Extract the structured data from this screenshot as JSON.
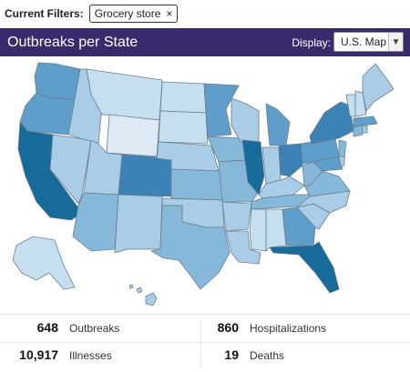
{
  "filters": {
    "label": "Current Filters:",
    "chip_label": "Grocery store",
    "chip_close": "×"
  },
  "header": {
    "title": "Outbreaks per State",
    "display_label": "Display:",
    "display_value": "U.S. Map"
  },
  "stats": [
    {
      "value": "648",
      "label": "Outbreaks"
    },
    {
      "value": "860",
      "label": "Hospitalizations"
    },
    {
      "value": "10,917",
      "label": "Illnesses"
    },
    {
      "value": "19",
      "label": "Deaths"
    }
  ],
  "colors": {
    "header_bg": "#3b2a6b",
    "level1": "#c6dff0",
    "level2": "#a9cde6",
    "level3": "#86b8da",
    "level4": "#5f9ecb",
    "level5": "#3b82b7",
    "level6": "#176b9b",
    "border": "#6b7d8c"
  }
}
